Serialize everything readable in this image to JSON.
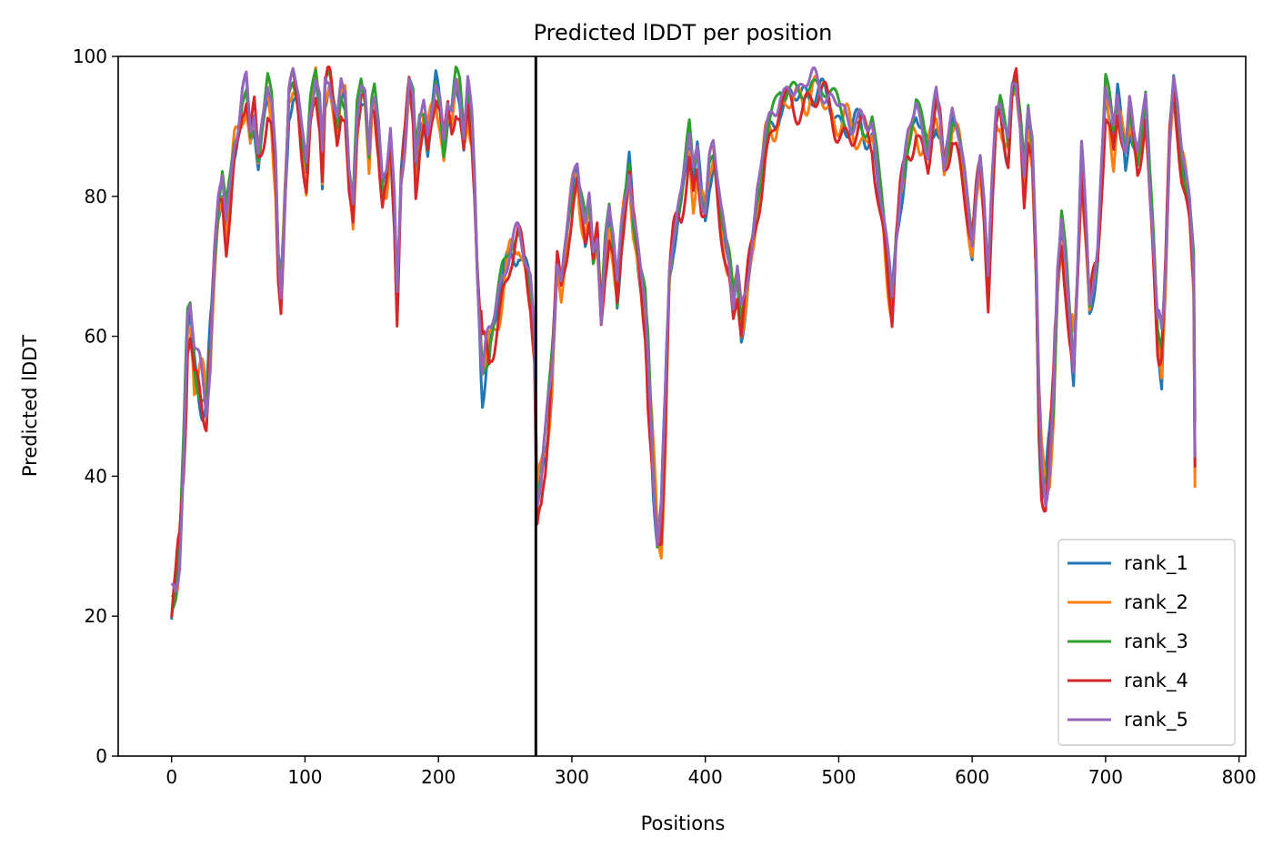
{
  "chart_data": {
    "type": "line",
    "title": "Predicted lDDT per position",
    "xlabel": "Positions",
    "ylabel": "Predicted lDDT",
    "xlim": [
      -40,
      805
    ],
    "ylim": [
      0,
      100
    ],
    "xticks": [
      0,
      100,
      200,
      300,
      400,
      500,
      600,
      700,
      800
    ],
    "yticks": [
      0,
      20,
      40,
      60,
      80,
      100
    ],
    "grid": false,
    "legend_position": "lower-right",
    "vline_x": 273,
    "series": [
      {
        "name": "rank_1",
        "color": "#1f77b4"
      },
      {
        "name": "rank_2",
        "color": "#ff7f0e"
      },
      {
        "name": "rank_3",
        "color": "#2ca02c"
      },
      {
        "name": "rank_4",
        "color": "#d62728"
      },
      {
        "name": "rank_5",
        "color": "#9467bd"
      }
    ],
    "base_profile": [
      [
        0,
        20
      ],
      [
        3,
        22
      ],
      [
        6,
        28
      ],
      [
        9,
        42
      ],
      [
        11,
        55
      ],
      [
        12,
        62
      ],
      [
        14,
        64
      ],
      [
        17,
        58
      ],
      [
        20,
        55
      ],
      [
        23,
        52
      ],
      [
        26,
        50
      ],
      [
        29,
        58
      ],
      [
        32,
        70
      ],
      [
        35,
        78
      ],
      [
        38,
        82
      ],
      [
        41,
        76
      ],
      [
        44,
        81
      ],
      [
        47,
        87
      ],
      [
        50,
        90
      ],
      [
        53,
        94
      ],
      [
        56,
        95
      ],
      [
        59,
        88
      ],
      [
        62,
        92
      ],
      [
        65,
        86
      ],
      [
        68,
        90
      ],
      [
        72,
        95
      ],
      [
        75,
        92
      ],
      [
        78,
        84
      ],
      [
        80,
        70
      ],
      [
        82,
        66
      ],
      [
        85,
        80
      ],
      [
        88,
        94
      ],
      [
        91,
        96
      ],
      [
        95,
        94
      ],
      [
        98,
        89
      ],
      [
        101,
        84
      ],
      [
        104,
        92
      ],
      [
        108,
        96
      ],
      [
        111,
        92
      ],
      [
        113,
        84
      ],
      [
        115,
        96
      ],
      [
        118,
        97
      ],
      [
        121,
        93
      ],
      [
        124,
        90
      ],
      [
        127,
        96
      ],
      [
        130,
        94
      ],
      [
        133,
        82
      ],
      [
        136,
        78
      ],
      [
        139,
        92
      ],
      [
        142,
        96
      ],
      [
        145,
        93
      ],
      [
        148,
        84
      ],
      [
        150,
        92
      ],
      [
        152,
        94
      ],
      [
        155,
        90
      ],
      [
        158,
        82
      ],
      [
        161,
        84
      ],
      [
        164,
        89
      ],
      [
        167,
        78
      ],
      [
        169,
        64
      ],
      [
        172,
        82
      ],
      [
        175,
        88
      ],
      [
        178,
        96
      ],
      [
        181,
        93
      ],
      [
        183,
        84
      ],
      [
        186,
        90
      ],
      [
        189,
        92
      ],
      [
        192,
        88
      ],
      [
        195,
        93
      ],
      [
        198,
        96
      ],
      [
        201,
        92
      ],
      [
        204,
        86
      ],
      [
        207,
        93
      ],
      [
        210,
        92
      ],
      [
        213,
        96
      ],
      [
        216,
        94
      ],
      [
        219,
        88
      ],
      [
        222,
        95
      ],
      [
        225,
        90
      ],
      [
        227,
        82
      ],
      [
        229,
        70
      ],
      [
        231,
        62
      ],
      [
        233,
        55
      ],
      [
        236,
        58
      ],
      [
        239,
        60
      ],
      [
        242,
        62
      ],
      [
        245,
        65
      ],
      [
        248,
        68
      ],
      [
        251,
        70
      ],
      [
        254,
        72
      ],
      [
        257,
        73
      ],
      [
        260,
        74
      ],
      [
        263,
        72
      ],
      [
        266,
        70
      ],
      [
        269,
        68
      ],
      [
        272,
        60
      ],
      [
        274,
        36
      ],
      [
        277,
        37
      ],
      [
        280,
        43
      ],
      [
        283,
        52
      ],
      [
        286,
        60
      ],
      [
        289,
        70
      ],
      [
        292,
        66
      ],
      [
        295,
        72
      ],
      [
        298,
        78
      ],
      [
        301,
        82
      ],
      [
        304,
        84
      ],
      [
        307,
        80
      ],
      [
        310,
        76
      ],
      [
        313,
        78
      ],
      [
        316,
        70
      ],
      [
        319,
        74
      ],
      [
        322,
        62
      ],
      [
        325,
        72
      ],
      [
        328,
        78
      ],
      [
        331,
        74
      ],
      [
        334,
        66
      ],
      [
        337,
        74
      ],
      [
        340,
        80
      ],
      [
        343,
        84
      ],
      [
        346,
        76
      ],
      [
        349,
        72
      ],
      [
        352,
        68
      ],
      [
        355,
        64
      ],
      [
        358,
        52
      ],
      [
        361,
        40
      ],
      [
        364,
        32
      ],
      [
        367,
        34
      ],
      [
        370,
        48
      ],
      [
        373,
        68
      ],
      [
        376,
        74
      ],
      [
        379,
        78
      ],
      [
        382,
        80
      ],
      [
        385,
        84
      ],
      [
        388,
        88
      ],
      [
        391,
        82
      ],
      [
        394,
        86
      ],
      [
        397,
        80
      ],
      [
        400,
        78
      ],
      [
        403,
        84
      ],
      [
        406,
        86
      ],
      [
        409,
        82
      ],
      [
        412,
        78
      ],
      [
        415,
        74
      ],
      [
        418,
        70
      ],
      [
        421,
        64
      ],
      [
        424,
        68
      ],
      [
        427,
        62
      ],
      [
        430,
        66
      ],
      [
        433,
        70
      ],
      [
        436,
        74
      ],
      [
        439,
        80
      ],
      [
        442,
        84
      ],
      [
        445,
        88
      ],
      [
        448,
        90
      ],
      [
        452,
        92
      ],
      [
        456,
        94
      ],
      [
        460,
        93
      ],
      [
        465,
        94
      ],
      [
        470,
        95
      ],
      [
        475,
        96
      ],
      [
        480,
        96
      ],
      [
        485,
        95
      ],
      [
        490,
        94
      ],
      [
        495,
        93
      ],
      [
        500,
        92
      ],
      [
        505,
        91
      ],
      [
        510,
        90
      ],
      [
        515,
        90
      ],
      [
        520,
        89
      ],
      [
        525,
        90
      ],
      [
        528,
        85
      ],
      [
        531,
        80
      ],
      [
        534,
        76
      ],
      [
        537,
        70
      ],
      [
        540,
        64
      ],
      [
        543,
        74
      ],
      [
        546,
        80
      ],
      [
        549,
        84
      ],
      [
        552,
        88
      ],
      [
        555,
        90
      ],
      [
        558,
        92
      ],
      [
        561,
        90
      ],
      [
        564,
        88
      ],
      [
        567,
        86
      ],
      [
        570,
        90
      ],
      [
        573,
        93
      ],
      [
        576,
        90
      ],
      [
        579,
        84
      ],
      [
        582,
        88
      ],
      [
        585,
        92
      ],
      [
        588,
        90
      ],
      [
        591,
        86
      ],
      [
        594,
        82
      ],
      [
        597,
        78
      ],
      [
        600,
        74
      ],
      [
        603,
        80
      ],
      [
        606,
        84
      ],
      [
        609,
        78
      ],
      [
        612,
        68
      ],
      [
        615,
        82
      ],
      [
        618,
        92
      ],
      [
        621,
        94
      ],
      [
        624,
        90
      ],
      [
        627,
        86
      ],
      [
        630,
        94
      ],
      [
        633,
        96
      ],
      [
        636,
        90
      ],
      [
        639,
        82
      ],
      [
        642,
        92
      ],
      [
        645,
        88
      ],
      [
        648,
        70
      ],
      [
        650,
        50
      ],
      [
        652,
        40
      ],
      [
        655,
        38
      ],
      [
        658,
        42
      ],
      [
        661,
        50
      ],
      [
        664,
        68
      ],
      [
        667,
        76
      ],
      [
        670,
        70
      ],
      [
        673,
        62
      ],
      [
        676,
        56
      ],
      [
        679,
        70
      ],
      [
        682,
        86
      ],
      [
        685,
        76
      ],
      [
        688,
        64
      ],
      [
        691,
        68
      ],
      [
        694,
        72
      ],
      [
        697,
        84
      ],
      [
        700,
        95
      ],
      [
        703,
        92
      ],
      [
        706,
        88
      ],
      [
        709,
        94
      ],
      [
        712,
        90
      ],
      [
        715,
        86
      ],
      [
        718,
        92
      ],
      [
        721,
        88
      ],
      [
        724,
        86
      ],
      [
        727,
        90
      ],
      [
        730,
        94
      ],
      [
        733,
        82
      ],
      [
        736,
        72
      ],
      [
        739,
        60
      ],
      [
        742,
        58
      ],
      [
        745,
        70
      ],
      [
        748,
        88
      ],
      [
        751,
        96
      ],
      [
        754,
        92
      ],
      [
        757,
        86
      ],
      [
        760,
        82
      ],
      [
        763,
        78
      ],
      [
        766,
        70
      ],
      [
        767,
        45
      ]
    ],
    "series_variation": [
      {
        "amp": 3.0,
        "bias": -0.5,
        "freq": 0.37,
        "phase": 0.0
      },
      {
        "amp": 3.5,
        "bias": -1.0,
        "freq": 0.41,
        "phase": 1.3
      },
      {
        "amp": 2.5,
        "bias": 0.5,
        "freq": 0.29,
        "phase": 2.1
      },
      {
        "amp": 4.0,
        "bias": -1.5,
        "freq": 0.33,
        "phase": 3.4
      },
      {
        "amp": 2.0,
        "bias": 0.8,
        "freq": 0.45,
        "phase": 4.7
      }
    ]
  }
}
